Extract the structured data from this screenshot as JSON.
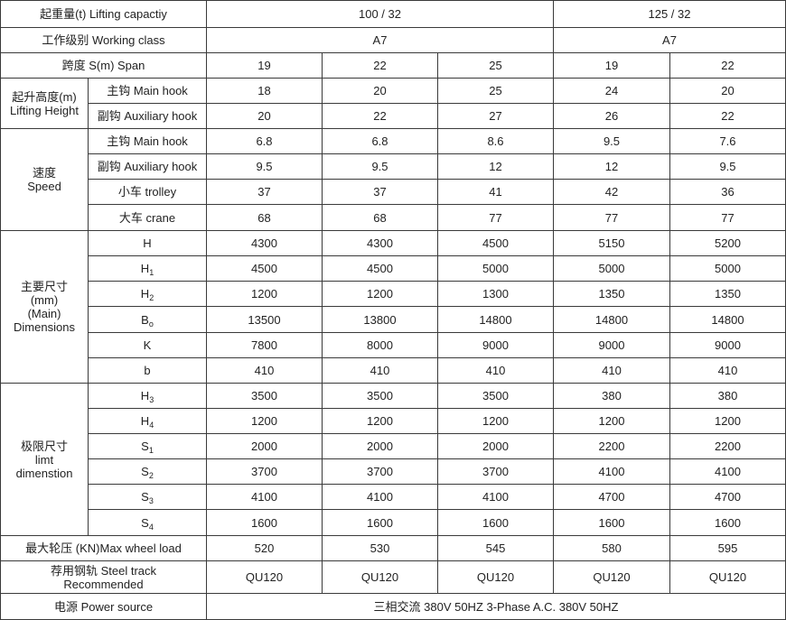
{
  "header": {
    "capacity_label": "起重量(t) Lifting capactiy",
    "capacity_groups": [
      "100 / 32",
      "125 / 32"
    ],
    "class_label": "工作级别 Working class",
    "class_groups": [
      "A7",
      "A7"
    ],
    "span_label": "跨度 S(m) Span",
    "spans": [
      "19",
      "22",
      "25",
      "19",
      "22"
    ]
  },
  "groups": [
    {
      "label_lines": [
        "起升高度(m)",
        "Lifting Height"
      ],
      "rows": [
        {
          "label": "主钩 Main hook",
          "sub": "",
          "values": [
            "18",
            "20",
            "25",
            "24",
            "20"
          ]
        },
        {
          "label": "副钩 Auxiliary hook",
          "sub": "",
          "values": [
            "20",
            "22",
            "27",
            "26",
            "22"
          ]
        }
      ]
    },
    {
      "label_lines": [
        "速度",
        "Speed"
      ],
      "rows": [
        {
          "label": "主钩 Main hook",
          "sub": "",
          "values": [
            "6.8",
            "6.8",
            "8.6",
            "9.5",
            "7.6"
          ]
        },
        {
          "label": "副钩 Auxiliary hook",
          "sub": "",
          "values": [
            "9.5",
            "9.5",
            "12",
            "12",
            "9.5"
          ]
        },
        {
          "label": "小车 trolley",
          "sub": "",
          "values": [
            "37",
            "37",
            "41",
            "42",
            "36"
          ]
        },
        {
          "label": "大车 crane",
          "sub": "",
          "values": [
            "68",
            "68",
            "77",
            "77",
            "77"
          ]
        }
      ]
    },
    {
      "label_lines": [
        "主要尺寸",
        "(mm)",
        "(Main)",
        "Dimensions"
      ],
      "rows": [
        {
          "label": "H",
          "sub": "",
          "values": [
            "4300",
            "4300",
            "4500",
            "5150",
            "5200"
          ]
        },
        {
          "label": "H",
          "sub": "1",
          "values": [
            "4500",
            "4500",
            "5000",
            "5000",
            "5000"
          ]
        },
        {
          "label": "H",
          "sub": "2",
          "values": [
            "1200",
            "1200",
            "1300",
            "1350",
            "1350"
          ]
        },
        {
          "label": "B",
          "sub": "o",
          "values": [
            "13500",
            "13800",
            "14800",
            "14800",
            "14800"
          ]
        },
        {
          "label": "K",
          "sub": "",
          "values": [
            "7800",
            "8000",
            "9000",
            "9000",
            "9000"
          ]
        },
        {
          "label": "b",
          "sub": "",
          "values": [
            "410",
            "410",
            "410",
            "410",
            "410"
          ]
        }
      ]
    },
    {
      "label_lines": [
        "极限尺寸",
        "limt",
        "dimenstion"
      ],
      "rows": [
        {
          "label": "H",
          "sub": "3",
          "values": [
            "3500",
            "3500",
            "3500",
            "380",
            "380"
          ]
        },
        {
          "label": "H",
          "sub": "4",
          "values": [
            "1200",
            "1200",
            "1200",
            "1200",
            "1200"
          ]
        },
        {
          "label": "S",
          "sub": "1",
          "values": [
            "2000",
            "2000",
            "2000",
            "2200",
            "2200"
          ]
        },
        {
          "label": "S",
          "sub": "2",
          "values": [
            "3700",
            "3700",
            "3700",
            "4100",
            "4100"
          ]
        },
        {
          "label": "S",
          "sub": "3",
          "values": [
            "4100",
            "4100",
            "4100",
            "4700",
            "4700"
          ]
        },
        {
          "label": "S",
          "sub": "4",
          "values": [
            "1600",
            "1600",
            "1600",
            "1600",
            "1600"
          ]
        }
      ]
    }
  ],
  "footer": {
    "wheel_label": "最大轮压 (KN)Max wheel load",
    "wheel_values": [
      "520",
      "530",
      "545",
      "580",
      "595"
    ],
    "track_label_lines": [
      "荐用钢轨 Steel track",
      "Recommended"
    ],
    "track_values": [
      "QU120",
      "QU120",
      "QU120",
      "QU120",
      "QU120"
    ],
    "power_label": "电源 Power source",
    "power_value": "三相交流 380V  50HZ  3-Phase A.C. 380V  50HZ"
  }
}
